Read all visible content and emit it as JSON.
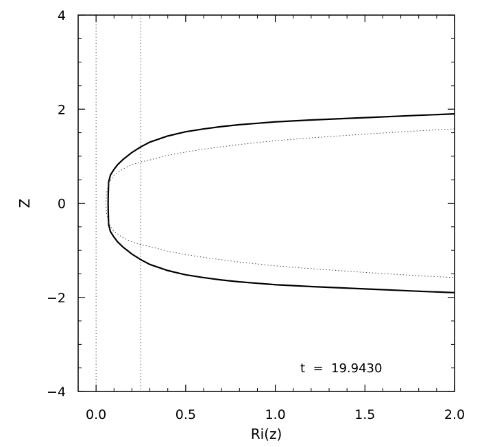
{
  "chart_data": {
    "type": "line",
    "title": "",
    "xlabel": "Ri(z)",
    "ylabel": "Z",
    "xlim": [
      -0.1,
      2.0
    ],
    "ylim": [
      -4,
      4
    ],
    "xticks": [
      0.0,
      0.5,
      1.0,
      1.5,
      2.0
    ],
    "xtick_labels": [
      "0.0",
      "0.5",
      "1.0",
      "1.5",
      "2.0"
    ],
    "yticks": [
      -4,
      -2,
      0,
      2,
      4
    ],
    "ytick_labels": [
      "−4",
      "−2",
      "0",
      "2",
      "4"
    ],
    "grid": false,
    "annotation": "t  =  19.9430",
    "reference_lines": [
      {
        "orientation": "vertical",
        "x": 0.0,
        "style": "dotted"
      },
      {
        "orientation": "vertical",
        "x": 0.25,
        "style": "dotted"
      }
    ],
    "series": [
      {
        "style": "solid",
        "points": [
          [
            2.0,
            1.9
          ],
          [
            1.8,
            1.87
          ],
          [
            1.5,
            1.82
          ],
          [
            1.2,
            1.77
          ],
          [
            1.0,
            1.73
          ],
          [
            0.9,
            1.7
          ],
          [
            0.8,
            1.67
          ],
          [
            0.7,
            1.63
          ],
          [
            0.6,
            1.58
          ],
          [
            0.5,
            1.52
          ],
          [
            0.4,
            1.43
          ],
          [
            0.3,
            1.3
          ],
          [
            0.25,
            1.2
          ],
          [
            0.2,
            1.08
          ],
          [
            0.15,
            0.93
          ],
          [
            0.12,
            0.82
          ],
          [
            0.1,
            0.72
          ],
          [
            0.08,
            0.6
          ],
          [
            0.07,
            0.45
          ],
          [
            0.068,
            0.2
          ],
          [
            0.067,
            0.0
          ],
          [
            0.068,
            -0.2
          ],
          [
            0.07,
            -0.45
          ],
          [
            0.08,
            -0.6
          ],
          [
            0.1,
            -0.72
          ],
          [
            0.12,
            -0.82
          ],
          [
            0.15,
            -0.93
          ],
          [
            0.2,
            -1.08
          ],
          [
            0.25,
            -1.2
          ],
          [
            0.3,
            -1.3
          ],
          [
            0.4,
            -1.43
          ],
          [
            0.5,
            -1.52
          ],
          [
            0.6,
            -1.58
          ],
          [
            0.7,
            -1.63
          ],
          [
            0.8,
            -1.67
          ],
          [
            0.9,
            -1.7
          ],
          [
            1.0,
            -1.73
          ],
          [
            1.2,
            -1.77
          ],
          [
            1.5,
            -1.82
          ],
          [
            1.8,
            -1.87
          ],
          [
            2.0,
            -1.9
          ]
        ]
      },
      {
        "style": "dotted",
        "points": [
          [
            2.0,
            1.58
          ],
          [
            1.8,
            1.54
          ],
          [
            1.5,
            1.47
          ],
          [
            1.2,
            1.39
          ],
          [
            1.0,
            1.33
          ],
          [
            0.8,
            1.25
          ],
          [
            0.6,
            1.15
          ],
          [
            0.5,
            1.09
          ],
          [
            0.4,
            1.02
          ],
          [
            0.3,
            0.92
          ],
          [
            0.25,
            0.88
          ],
          [
            0.2,
            0.82
          ],
          [
            0.15,
            0.73
          ],
          [
            0.1,
            0.6
          ],
          [
            0.07,
            0.42
          ],
          [
            0.058,
            0.2
          ],
          [
            0.055,
            0.0
          ],
          [
            0.058,
            -0.2
          ],
          [
            0.07,
            -0.42
          ],
          [
            0.1,
            -0.6
          ],
          [
            0.15,
            -0.73
          ],
          [
            0.2,
            -0.82
          ],
          [
            0.25,
            -0.88
          ],
          [
            0.3,
            -0.92
          ],
          [
            0.4,
            -1.02
          ],
          [
            0.5,
            -1.09
          ],
          [
            0.6,
            -1.15
          ],
          [
            0.8,
            -1.25
          ],
          [
            1.0,
            -1.33
          ],
          [
            1.2,
            -1.39
          ],
          [
            1.5,
            -1.47
          ],
          [
            1.8,
            -1.54
          ],
          [
            2.0,
            -1.58
          ]
        ]
      }
    ]
  }
}
